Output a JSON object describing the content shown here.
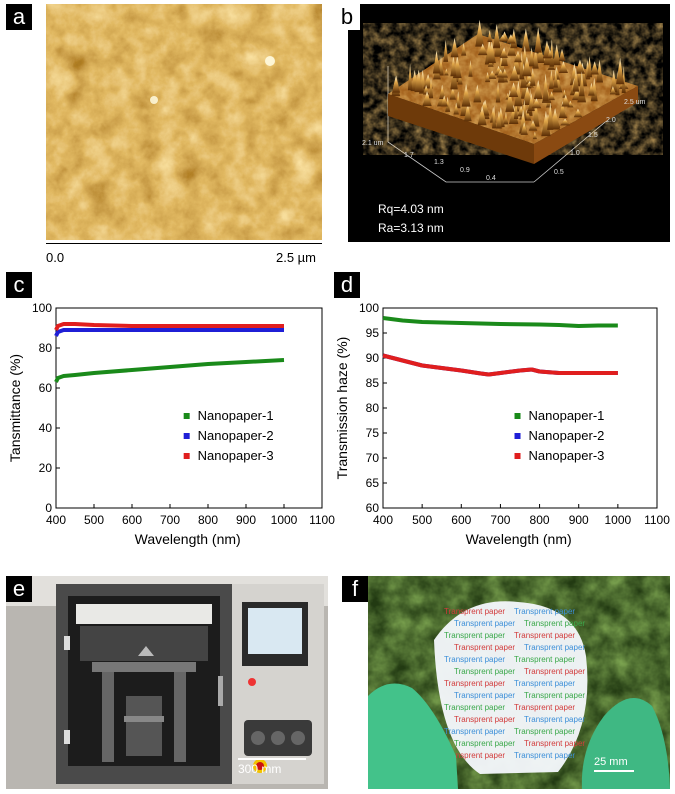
{
  "panels": {
    "a": {
      "letter": "a",
      "scale_start": "0.0",
      "scale_end": "2.5 µm"
    },
    "b": {
      "letter": "b",
      "rq": "Rq=4.03 nm",
      "ra": "Ra=3.13 nm",
      "axis_z": "2.1 um",
      "axis_x_ticks": [
        "1.7",
        "1.3",
        "0.9",
        "0.4"
      ],
      "axis_y_ticks": [
        "0.5",
        "1.0",
        "1.5",
        "2.0",
        "2.5 um"
      ]
    },
    "c": {
      "letter": "c"
    },
    "d": {
      "letter": "d"
    },
    "e": {
      "letter": "e",
      "scalebar": "300 mm"
    },
    "f": {
      "letter": "f",
      "scalebar": "25 mm",
      "paper_text": "Transprent paper"
    }
  },
  "colors": {
    "green": "#1a8a1a",
    "blue": "#1f1fd6",
    "red": "#e01e1e"
  },
  "chart_data": [
    {
      "type": "line",
      "ylabel": "Tansmittance (%)",
      "xlabel": "Wavelength (nm)",
      "xlim": [
        400,
        1100
      ],
      "ylim": [
        0,
        100
      ],
      "xticks": [
        400,
        500,
        600,
        700,
        800,
        900,
        1000,
        1100
      ],
      "yticks": [
        0,
        20,
        40,
        60,
        80,
        100
      ],
      "legend_position": "center-right",
      "series": [
        {
          "name": "Nanopaper-1",
          "color": "#1a8a1a",
          "x": [
            400,
            405,
            420,
            450,
            500,
            600,
            700,
            800,
            900,
            1000
          ],
          "y": [
            63,
            65,
            66,
            66.5,
            67.5,
            69,
            70.5,
            72,
            73,
            74
          ]
        },
        {
          "name": "Nanopaper-2",
          "color": "#1f1fd6",
          "x": [
            400,
            405,
            420,
            450,
            500,
            600,
            700,
            800,
            900,
            1000
          ],
          "y": [
            86,
            88,
            89,
            89,
            89,
            89,
            89,
            89,
            89,
            89
          ]
        },
        {
          "name": "Nanopaper-3",
          "color": "#e01e1e",
          "x": [
            400,
            405,
            420,
            450,
            500,
            600,
            700,
            800,
            900,
            1000
          ],
          "y": [
            89,
            91,
            92,
            92,
            91.5,
            91,
            91,
            91,
            91,
            91
          ]
        }
      ]
    },
    {
      "type": "line",
      "ylabel": "Transmission haze (%)",
      "xlabel": "Wavelength (nm)",
      "xlim": [
        400,
        1100
      ],
      "ylim": [
        60,
        100
      ],
      "xticks": [
        400,
        500,
        600,
        700,
        800,
        900,
        1000,
        1100
      ],
      "yticks": [
        60,
        65,
        70,
        75,
        80,
        85,
        90,
        95,
        100
      ],
      "legend_position": "center-right",
      "series": [
        {
          "name": "Nanopaper-1",
          "color": "#1a8a1a",
          "x": [
            400,
            450,
            500,
            600,
            700,
            800,
            850,
            900,
            950,
            1000
          ],
          "y": [
            98,
            97.5,
            97.2,
            97,
            96.8,
            96.7,
            96.6,
            96.4,
            96.5,
            96.5
          ]
        },
        {
          "name": "Nanopaper-2",
          "color": "#1f1fd6",
          "x": [
            400,
            450,
            500,
            550,
            600,
            650,
            670,
            700,
            750,
            780,
            800,
            850,
            900,
            950,
            1000
          ],
          "y": [
            90.5,
            89.5,
            88.5,
            88,
            87.5,
            86.9,
            86.7,
            87,
            87.5,
            87.7,
            87.3,
            87,
            87,
            87,
            87
          ]
        },
        {
          "name": "Nanopaper-3",
          "color": "#e01e1e",
          "x": [
            400,
            450,
            500,
            550,
            600,
            650,
            670,
            700,
            750,
            780,
            800,
            850,
            900,
            950,
            1000
          ],
          "y": [
            90.5,
            89.5,
            88.5,
            88,
            87.5,
            86.9,
            86.7,
            87,
            87.5,
            87.7,
            87.3,
            87,
            87,
            87,
            87
          ]
        }
      ]
    }
  ]
}
